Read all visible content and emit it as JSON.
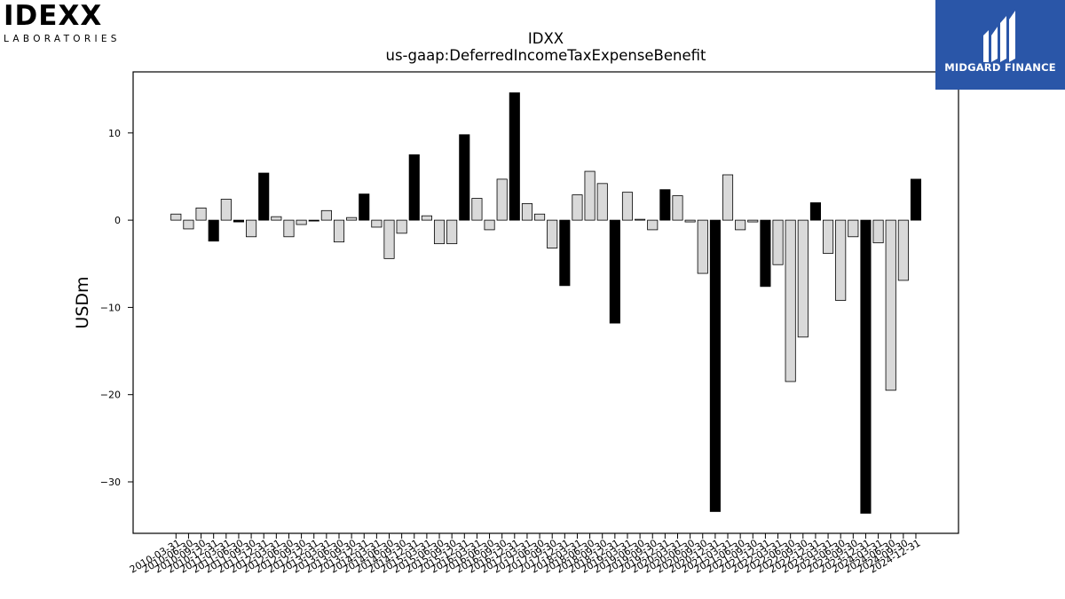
{
  "logos": {
    "left_wordmark": "IDEXX",
    "left_subtitle": "LABORATORIES",
    "right_name": "MIDGARD FINANCE"
  },
  "colors": {
    "highlight_bar": "#000000",
    "normal_bar": "#d9d9d9",
    "bar_edge": "#000000",
    "brand_blue": "#2a56a8"
  },
  "chart_data": {
    "type": "bar",
    "title": "IDXX",
    "subtitle": "us-gaap:DeferredIncomeTaxExpenseBenefit",
    "xlabel": "",
    "ylabel": "USDm",
    "ylim": [
      -35.9,
      17.0
    ],
    "yticks": [
      -30,
      -20,
      -10,
      0,
      10
    ],
    "grid": false,
    "legend": "none",
    "x_tick_labels_shown": [
      "2010-03-31",
      "2010-06-30",
      "2010-09-30",
      "2010-12-31",
      "2011-03-31",
      "2011-06-30",
      "2011-09-30",
      "2011-12-31",
      "2012-03-31",
      "2012-06-30",
      "2012-09-30",
      "2012-12-31",
      "2013-03-31",
      "2013-06-30",
      "2013-09-30",
      "2013-12-31",
      "2014-03-31",
      "2014-06-30",
      "2014-09-30",
      "2014-12-31",
      "2015-03-31",
      "2015-06-30",
      "2015-09-30",
      "2015-12-31",
      "2016-03-31",
      "2016-06-30",
      "2016-09-30",
      "2016-12-31",
      "2017-03-31",
      "2017-06-30",
      "2017-09-30",
      "2017-12-31",
      "2018-03-31",
      "2018-06-30",
      "2018-09-30",
      "2018-12-31",
      "2019-03-31",
      "2019-06-30",
      "2019-09-30",
      "2019-12-31",
      "2020-03-31",
      "2020-06-30",
      "2020-09-30",
      "2020-12-31",
      "2021-03-31",
      "2021-06-30",
      "2021-09-30",
      "2021-12-31",
      "2022-03-31",
      "2022-06-30",
      "2022-09-30",
      "2022-12-31",
      "2023-03-31",
      "2023-06-30",
      "2023-09-30",
      "2023-12-31",
      "2024-03-31",
      "2024-06-30",
      "2024-09-30",
      "2024-12-31"
    ],
    "categories": [
      "2010-03-31",
      "2010-06-30",
      "2010-09-30",
      "2010-12-31",
      "2011-03-31",
      "2011-06-30",
      "2011-09-30",
      "2011-12-31",
      "2012-03-31",
      "2012-06-30",
      "2012-09-30",
      "2012-12-31",
      "2013-03-31",
      "2013-06-30",
      "2013-09-30",
      "2013-12-31",
      "2014-03-31",
      "2014-06-30",
      "2014-09-30",
      "2014-12-31",
      "2015-03-31",
      "2015-06-30",
      "2015-09-30",
      "2015-12-31",
      "2016-03-31",
      "2016-06-30",
      "2016-09-30",
      "2016-12-31",
      "2017-03-31",
      "2017-06-30",
      "2017-09-30",
      "2017-12-31",
      "2018-03-31",
      "2018-06-30",
      "2018-09-30",
      "2018-12-31",
      "2019-03-31",
      "2019-06-30",
      "2019-09-30",
      "2019-12-31",
      "2020-03-31",
      "2020-06-30",
      "2020-09-30",
      "2020-12-31",
      "2021-03-31",
      "2021-06-30",
      "2021-09-30",
      "2021-12-31",
      "2022-03-31",
      "2022-06-30",
      "2022-09-30",
      "2022-12-31",
      "2023-03-31",
      "2023-06-30",
      "2023-09-30",
      "2023-12-31",
      "2024-03-31",
      "2024-06-30",
      "2024-09-30",
      "2024-12-31"
    ],
    "values": [
      0.7,
      -1.0,
      1.4,
      -2.4,
      2.4,
      -0.2,
      -1.9,
      5.4,
      0.4,
      -1.9,
      -0.5,
      -0.1,
      1.1,
      -2.5,
      0.3,
      3.0,
      -0.8,
      -4.4,
      -1.5,
      7.5,
      0.5,
      -2.7,
      -2.7,
      9.8,
      2.5,
      -1.1,
      4.7,
      14.6,
      1.9,
      0.7,
      -3.2,
      -7.5,
      2.9,
      5.6,
      4.2,
      -11.8,
      3.2,
      0.1,
      -1.1,
      3.5,
      2.8,
      -0.2,
      -6.1,
      -33.4,
      5.2,
      -1.1,
      -0.2,
      -7.6,
      -5.1,
      -18.5,
      -13.4,
      2.0,
      -3.8,
      -9.2,
      -1.9,
      -33.6,
      -2.6,
      -19.5,
      -6.9,
      4.7
    ],
    "highlight": [
      false,
      false,
      false,
      true,
      false,
      true,
      false,
      true,
      false,
      false,
      false,
      true,
      false,
      false,
      false,
      true,
      false,
      false,
      false,
      true,
      false,
      false,
      false,
      true,
      false,
      false,
      false,
      true,
      false,
      false,
      false,
      true,
      false,
      false,
      false,
      true,
      false,
      false,
      false,
      true,
      false,
      false,
      false,
      true,
      false,
      false,
      false,
      true,
      false,
      false,
      false,
      true,
      false,
      false,
      false,
      true,
      false,
      false,
      false,
      true
    ]
  }
}
